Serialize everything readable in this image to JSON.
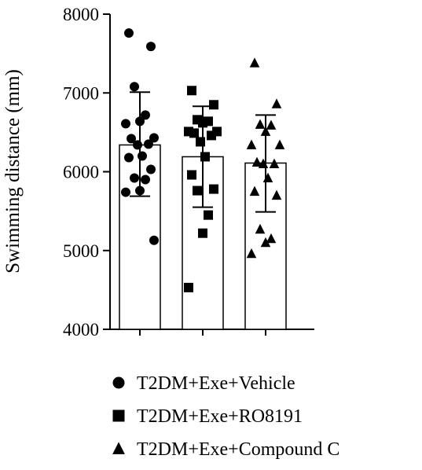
{
  "chart_data": {
    "type": "bar",
    "title": "",
    "xlabel": "",
    "ylabel": "Swimming distance (mm)",
    "ylim": [
      4000,
      8000
    ],
    "y_ticks": [
      "4000",
      "5000",
      "6000",
      "7000",
      "8000"
    ],
    "grid": false,
    "legend_position": "bottom",
    "bar_color": "#ffffff",
    "mark_color": "#000000",
    "categories": [
      "T2DM+Exe+Vehicle",
      "T2DM+Exe+RO8191",
      "T2DM+Exe+Compound C"
    ],
    "series": [
      {
        "name": "T2DM+Exe+Vehicle",
        "marker": "circle",
        "mean": 6340,
        "sd_upper": 7010,
        "sd_lower": 5690,
        "points": [
          7760,
          7590,
          7080,
          6720,
          6640,
          6610,
          6430,
          6420,
          6350,
          6340,
          6200,
          6180,
          6030,
          5920,
          5900,
          5760,
          5740,
          5130
        ]
      },
      {
        "name": "T2DM+Exe+RO8191",
        "marker": "square",
        "mean": 6190,
        "sd_upper": 6830,
        "sd_lower": 5550,
        "points": [
          7030,
          6850,
          6660,
          6640,
          6620,
          6510,
          6510,
          6490,
          6460,
          6380,
          6190,
          5960,
          5780,
          5760,
          5450,
          5220,
          4530
        ]
      },
      {
        "name": "T2DM+Exe+Compound C",
        "marker": "triangle",
        "mean": 6110,
        "sd_upper": 6720,
        "sd_lower": 5490,
        "points": [
          7380,
          6860,
          6600,
          6590,
          6510,
          6340,
          6340,
          6120,
          6100,
          6100,
          5920,
          5750,
          5700,
          5270,
          5150,
          5100,
          4960
        ]
      }
    ]
  }
}
